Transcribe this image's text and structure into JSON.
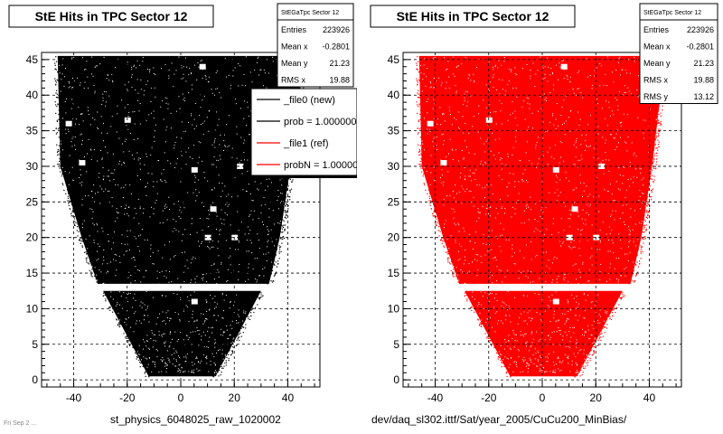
{
  "chart_data": [
    {
      "type": "scatter",
      "title": "StE Hits in TPC Sector 12",
      "xlabel": "",
      "ylabel": "",
      "xlim": [
        -52,
        52
      ],
      "ylim": [
        -1,
        46
      ],
      "x_ticks": [
        "-40",
        "-20",
        "0",
        "20",
        "40"
      ],
      "y_ticks": [
        "0",
        "5",
        "10",
        "15",
        "20",
        "25",
        "30",
        "35",
        "40",
        "45"
      ],
      "grid": true,
      "marker_color": "#000000",
      "stats": {
        "name": "StEGaTpc Sector 12",
        "rows": [
          {
            "label": "Entries",
            "value": "223926"
          },
          {
            "label": "Mean x",
            "value": "-0.2801"
          },
          {
            "label": "Mean y",
            "value": "21.23"
          },
          {
            "label": "RMS x",
            "value": "19.88"
          }
        ]
      },
      "legend": {
        "placement": "top-right",
        "entries": [
          {
            "label": "_file0 (new)",
            "color": "#000000"
          },
          {
            "label": "prob = 1.000000",
            "color": "#000000"
          },
          {
            "label": "_file1 (ref)",
            "color": "#ff0000"
          },
          {
            "label": "probN = 1.000000",
            "color": "#ff0000"
          }
        ]
      },
      "caption": "st_physics_6048025_raw_1020002",
      "footprint": {
        "upper": [
          [
            45.5,
            -46,
            46
          ],
          [
            30,
            -45,
            41
          ],
          [
            20,
            -37,
            37
          ],
          [
            13.5,
            -31,
            33
          ]
        ],
        "lower": [
          [
            12.5,
            -29,
            30
          ],
          [
            0.5,
            -12,
            13
          ]
        ]
      }
    },
    {
      "type": "scatter",
      "title": "StE Hits in TPC Sector 12",
      "xlabel": "",
      "ylabel": "",
      "xlim": [
        -52,
        52
      ],
      "ylim": [
        -1,
        46
      ],
      "x_ticks": [
        "-40",
        "-20",
        "0",
        "20",
        "40"
      ],
      "y_ticks": [
        "0",
        "5",
        "10",
        "15",
        "20",
        "25",
        "30",
        "35",
        "40",
        "45"
      ],
      "grid": true,
      "marker_color": "#ff0000",
      "stats": {
        "name": "StEGaTpc Sector 12",
        "rows": [
          {
            "label": "Entries",
            "value": "223926"
          },
          {
            "label": "Mean x",
            "value": "-0.2801"
          },
          {
            "label": "Mean y",
            "value": "21.23"
          },
          {
            "label": "RMS x",
            "value": "19.88"
          },
          {
            "label": "RMS y",
            "value": "13.12"
          }
        ]
      },
      "caption": "dev/daq_sl302.ittf/Sat/year_2005/CuCu200_MinBias/",
      "footprint": {
        "upper": [
          [
            45.5,
            -46,
            46
          ],
          [
            30,
            -45,
            41
          ],
          [
            20,
            -37,
            37
          ],
          [
            13.5,
            -31,
            33
          ]
        ],
        "lower": [
          [
            12.5,
            -29,
            30
          ],
          [
            0.5,
            -12,
            13
          ]
        ]
      }
    }
  ],
  "footer": {
    "corner_text": "Fri Sep 2 ..."
  }
}
